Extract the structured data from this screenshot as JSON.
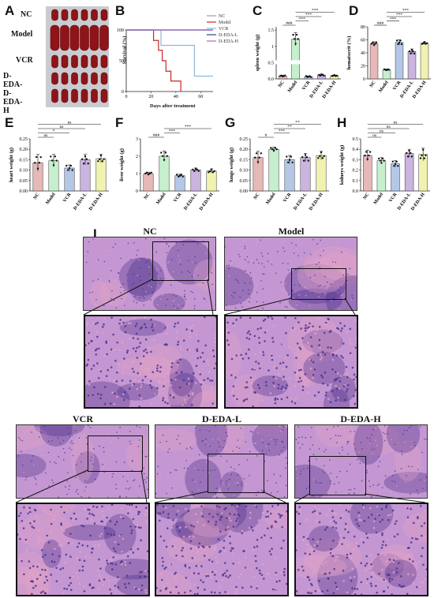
{
  "panel_letters": {
    "A": "A",
    "B": "B",
    "C": "C",
    "D": "D",
    "E": "E",
    "F": "F",
    "G": "G",
    "H": "H",
    "I": "I"
  },
  "panelA": {
    "row_labels": [
      "NC",
      "Model",
      "VCR",
      "D-EDA-L",
      "D-EDA-H"
    ],
    "colors": {
      "organ": "#8e1418",
      "organ_dark": "#5e0a0c",
      "background": "#c9cbd0"
    }
  },
  "chart_data": [
    {
      "panel": "B",
      "type": "line",
      "xlabel": "Days after treatment",
      "ylabel": "Survival (%)",
      "xticks": [
        "0",
        "20",
        "40",
        "60"
      ],
      "yticks": [
        "0",
        "50",
        "100"
      ],
      "xlim": [
        0,
        70
      ],
      "ylim": [
        0,
        100
      ],
      "series": [
        {
          "name": "NC",
          "color": "#9aa0a6",
          "x": [
            0,
            70
          ],
          "y": [
            100,
            100
          ]
        },
        {
          "name": "Model",
          "color": "#c62828",
          "x": [
            0,
            22,
            22,
            26,
            26,
            29,
            29,
            32,
            32,
            36,
            36,
            44,
            44
          ],
          "y": [
            100,
            100,
            83,
            83,
            67,
            67,
            50,
            50,
            33,
            33,
            17,
            17,
            0
          ]
        },
        {
          "name": "VCR",
          "color": "#90b6d8",
          "x": [
            0,
            28,
            28,
            55,
            55,
            70
          ],
          "y": [
            100,
            100,
            75,
            75,
            25,
            25
          ]
        },
        {
          "name": "D-EDA-L",
          "color": "#1f4e79",
          "x": [
            0,
            70
          ],
          "y": [
            100,
            100
          ]
        },
        {
          "name": "D-EDA-H",
          "color": "#a070c0",
          "x": [
            0,
            70
          ],
          "y": [
            100,
            100
          ]
        }
      ]
    },
    {
      "panel": "C",
      "type": "bar",
      "ylabel": "spleen weight (g)",
      "categories": [
        "NC",
        "Model",
        "VCR",
        "D-EDA-L",
        "D-EDA-H"
      ],
      "values": [
        0.09,
        1.22,
        0.07,
        0.12,
        0.1
      ],
      "errors": [
        0.02,
        0.2,
        0.02,
        0.03,
        0.02
      ],
      "yticks": [
        "0.0",
        "0.5",
        "1",
        "1.5"
      ],
      "ylim": [
        0,
        1.6
      ],
      "axis_break": [
        0.2,
        0.8
      ],
      "sig": [
        "###",
        "***",
        "***",
        "***"
      ]
    },
    {
      "panel": "D",
      "type": "bar",
      "ylabel": "hematocrit (%)",
      "categories": [
        "NC",
        "Model",
        "VCR",
        "D-EDA-L",
        "D-EDA-H"
      ],
      "values": [
        54,
        14,
        56,
        42,
        55
      ],
      "errors": [
        3,
        1,
        4,
        4,
        2
      ],
      "yticks": [
        "0",
        "20",
        "40",
        "60",
        "80"
      ],
      "ylim": [
        0,
        80
      ],
      "sig": [
        "###",
        "***",
        "***",
        "***"
      ]
    },
    {
      "panel": "E",
      "type": "bar",
      "ylabel": "heart weight (g)",
      "categories": [
        "NC",
        "Model",
        "VCR",
        "D-EDA-L",
        "D-EDA-H"
      ],
      "values": [
        0.135,
        0.145,
        0.11,
        0.15,
        0.155
      ],
      "errors": [
        0.04,
        0.03,
        0.015,
        0.025,
        0.02
      ],
      "yticks": [
        "0.00",
        "0.05",
        "0.10",
        "0.15",
        "0.20",
        "0.25"
      ],
      "ylim": [
        0,
        0.25
      ],
      "sig": [
        "ns",
        "*",
        "ns",
        "ns"
      ]
    },
    {
      "panel": "F",
      "type": "bar",
      "ylabel": "liver weight (g)",
      "categories": [
        "NC",
        "Model",
        "VCR",
        "D-EDA-L",
        "D-EDA-H"
      ],
      "values": [
        1.0,
        2.0,
        0.88,
        1.22,
        1.15
      ],
      "errors": [
        0.08,
        0.3,
        0.08,
        0.1,
        0.12
      ],
      "yticks": [
        "0",
        "1",
        "2",
        "3"
      ],
      "ylim": [
        0,
        3
      ],
      "sig": [
        "###",
        "***",
        "***"
      ]
    },
    {
      "panel": "G",
      "type": "bar",
      "ylabel": "lungs weight (g)",
      "categories": [
        "NC",
        "Model",
        "VCR",
        "D-EDA-L",
        "D-EDA-H"
      ],
      "values": [
        0.16,
        0.2,
        0.15,
        0.16,
        0.17
      ],
      "errors": [
        0.03,
        0.01,
        0.02,
        0.02,
        0.02
      ],
      "yticks": [
        "0.00",
        "0.05",
        "0.10",
        "0.15",
        "0.20",
        "0.25"
      ],
      "ylim": [
        0,
        0.25
      ],
      "sig": [
        "#",
        "***",
        "**",
        "**"
      ]
    },
    {
      "panel": "H",
      "type": "bar",
      "ylabel": "kidneys weight (g)",
      "categories": [
        "NC",
        "Model",
        "VCR",
        "D-EDA-L",
        "D-EDA-H"
      ],
      "values": [
        0.34,
        0.29,
        0.26,
        0.36,
        0.35
      ],
      "errors": [
        0.05,
        0.03,
        0.03,
        0.04,
        0.06
      ],
      "yticks": [
        "0.0",
        "0.1",
        "0.2",
        "0.3",
        "0.4",
        "0.5"
      ],
      "ylim": [
        0,
        0.5
      ],
      "sig": [
        "ns",
        "ns",
        "ns",
        "ns"
      ]
    }
  ],
  "bar_colors": [
    "#e6b8b7",
    "#c6efce",
    "#b4c7e7",
    "#cbb4e0",
    "#f2f2b0"
  ],
  "panelI": {
    "titles": [
      "NC",
      "Model",
      "VCR",
      "D-EDA-L",
      "D-EDA-H"
    ],
    "colors": {
      "he_base": "#c497d2",
      "he_nuclei": "#4a2f8a",
      "he_pink": "#e6a2c6"
    }
  }
}
